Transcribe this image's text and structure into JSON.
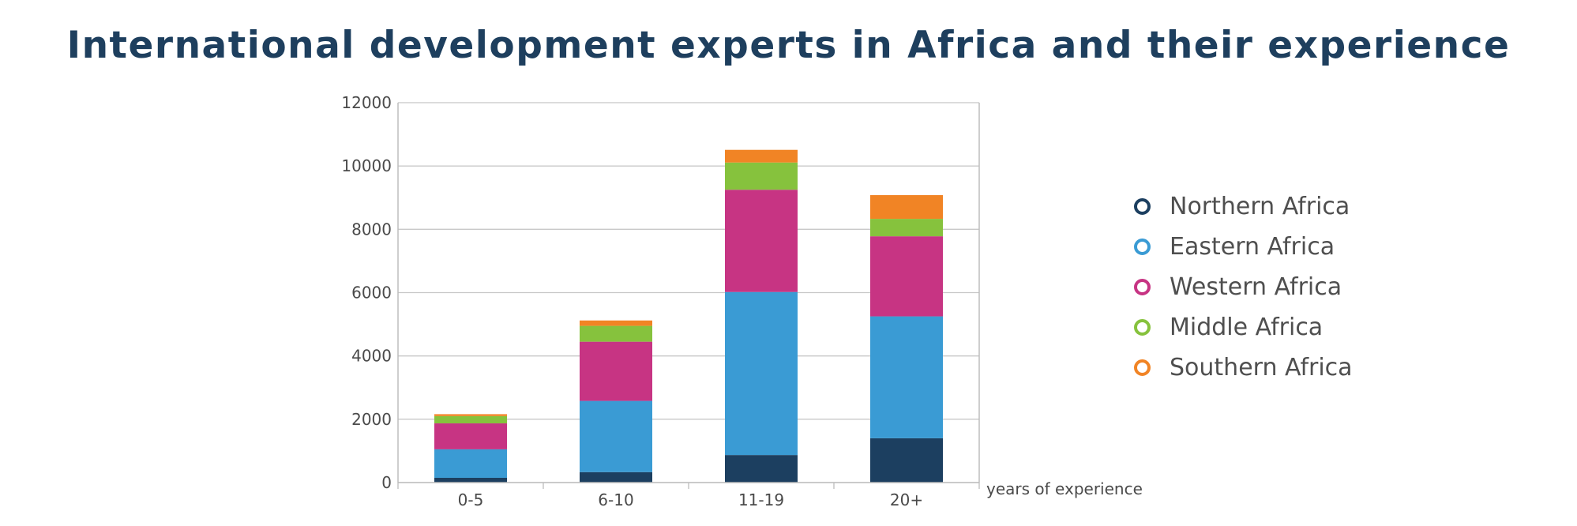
{
  "title": "International development experts in Africa and their experience",
  "chart_data": {
    "type": "bar",
    "stacked": true,
    "title": "International development experts in Africa and their experience",
    "xlabel": "years of experience",
    "ylabel": "",
    "ylim": [
      0,
      12000
    ],
    "yticks": [
      0,
      2000,
      4000,
      6000,
      8000,
      10000,
      12000
    ],
    "grid": true,
    "legend_position": "right",
    "categories": [
      "0-5",
      "6-10",
      "11-19",
      "20+"
    ],
    "series": [
      {
        "name": "Northern Africa",
        "color": "#1c3f60",
        "values": [
          150,
          330,
          870,
          1400
        ]
      },
      {
        "name": "Eastern Africa",
        "color": "#3a9bd4",
        "values": [
          900,
          2250,
          5150,
          3850
        ]
      },
      {
        "name": "Western Africa",
        "color": "#c73483",
        "values": [
          820,
          1870,
          3230,
          2530
        ]
      },
      {
        "name": "Middle Africa",
        "color": "#86c23d",
        "values": [
          230,
          500,
          860,
          550
        ]
      },
      {
        "name": "Southern Africa",
        "color": "#f18425",
        "values": [
          60,
          170,
          400,
          750
        ]
      }
    ]
  }
}
